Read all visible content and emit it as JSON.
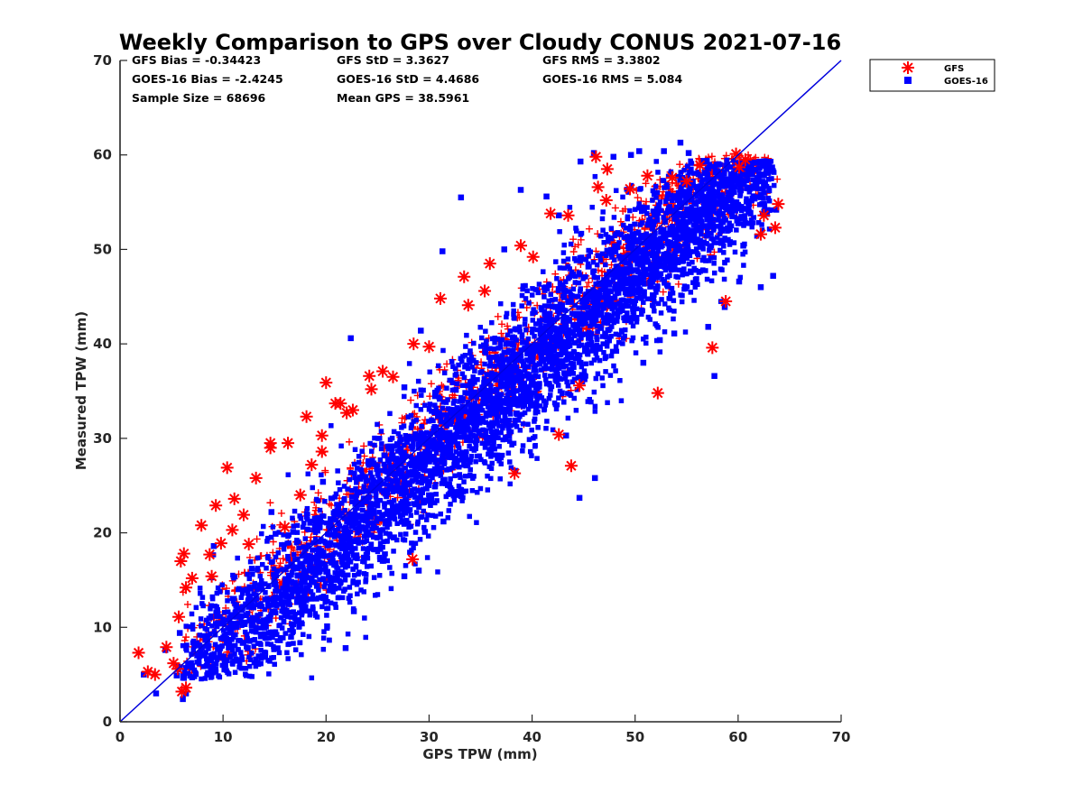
{
  "chart_data": {
    "type": "scatter",
    "title": "Weekly Comparison to GPS over Cloudy CONUS 2021-07-16",
    "xlabel": "GPS TPW (mm)",
    "ylabel": "Measured TPW (mm)",
    "xlim": [
      0,
      70
    ],
    "ylim": [
      0,
      70
    ],
    "xticks": [
      "0",
      "10",
      "20",
      "30",
      "40",
      "50",
      "60",
      "70"
    ],
    "yticks": [
      "0",
      "10",
      "20",
      "30",
      "40",
      "50",
      "60",
      "70"
    ],
    "grid": false,
    "legend_position": "outside-top-right",
    "stats": [
      "GFS Bias = -0.34423",
      "GFS StD = 3.3627",
      "GFS RMS = 3.3802",
      "GOES-16 Bias = -2.4245",
      "GOES-16 StD = 4.4686",
      "GOES-16 RMS = 5.084",
      "Sample Size = 68696",
      "Mean GPS = 38.5961"
    ],
    "one_to_one_line": {
      "from": [
        0,
        0
      ],
      "to": [
        70,
        70
      ],
      "color": "#0000dd"
    },
    "series": [
      {
        "name": "GFS",
        "marker": "asterisk",
        "color": "#ff0000",
        "x": [
          1.8,
          2.7,
          3.4,
          5.2,
          5.6,
          5.9,
          6.2,
          6.4,
          7.0,
          7.9,
          8.7,
          9.3,
          10.4,
          11.1,
          12.0,
          13.2,
          14.6,
          16.3,
          17.5,
          18.1,
          19.6,
          20.0,
          20.9,
          22.0,
          24.2,
          25.5,
          28.5,
          31.1,
          33.4,
          35.9,
          38.9,
          41.8,
          43.5,
          46.2,
          46.4,
          47.3,
          49.5,
          51.2,
          53.6,
          56.3,
          59.8,
          60.7,
          62.2,
          63.6,
          63.9,
          57.5,
          52.2,
          43.8,
          38.3,
          28.4,
          6.0,
          6.4,
          14.6,
          10.9,
          12.5,
          16.0,
          18.6,
          19.6,
          21.4,
          22.6,
          24.4,
          26.5,
          30.0,
          33.8,
          35.4,
          40.1,
          47.2,
          55.0,
          60.1,
          62.5,
          58.8,
          44.6,
          42.6,
          4.5,
          5.7,
          8.9,
          9.8
        ],
        "y": [
          7.3,
          5.3,
          5.0,
          6.2,
          5.6,
          17.0,
          17.8,
          14.2,
          15.2,
          20.8,
          17.7,
          22.9,
          26.9,
          23.6,
          21.9,
          25.8,
          29.5,
          29.5,
          24.0,
          32.3,
          28.6,
          35.9,
          33.7,
          32.7,
          36.6,
          37.1,
          40.0,
          44.8,
          47.1,
          48.5,
          50.4,
          53.8,
          53.6,
          59.8,
          56.6,
          58.5,
          56.4,
          57.8,
          57.6,
          58.9,
          60.1,
          59.5,
          51.6,
          52.3,
          54.8,
          39.6,
          34.8,
          27.1,
          26.3,
          17.2,
          3.2,
          3.6,
          29.0,
          20.3,
          18.8,
          20.6,
          27.2,
          30.3,
          33.7,
          33.0,
          35.2,
          36.5,
          39.7,
          44.1,
          45.6,
          49.2,
          55.2,
          57.2,
          58.7,
          53.6,
          44.5,
          35.6,
          30.4,
          7.9,
          11.1,
          15.4,
          18.9
        ]
      },
      {
        "name": "GOES-16",
        "marker": "square",
        "color": "#0000ff",
        "x": [
          2.3,
          3.5,
          4.4,
          5.5,
          6.1,
          6.4,
          7.0,
          9.1,
          10.9,
          12.8,
          14.7,
          15.1,
          16.8,
          19.7,
          22.4,
          25.7,
          27.6,
          29.2,
          29.6,
          31.3,
          33.1,
          37.3,
          38.9,
          41.4,
          42.6,
          44.7,
          46.0,
          47.9,
          49.6,
          50.4,
          52.8,
          54.4,
          55.2,
          56.9,
          59.0,
          60.1,
          60.5,
          62.2,
          63.4,
          63.7,
          55.9,
          53.8,
          52.4,
          50.8,
          46.1,
          43.3,
          40.2,
          36.8,
          31.4,
          27.6,
          22.7,
          20.1,
          16.6,
          12.4,
          10.1,
          8.2,
          5.8,
          57.7,
          58.7,
          54.8,
          57.1,
          49.8,
          39.7,
          44.6,
          13.2,
          21.9,
          29.0
        ],
        "y": [
          5.0,
          3.0,
          7.6,
          4.9,
          2.4,
          3.0,
          4.7,
          18.6,
          11.3,
          16.2,
          22.2,
          19.9,
          20.1,
          25.4,
          40.6,
          28.2,
          35.4,
          41.4,
          20.1,
          49.8,
          55.5,
          50.0,
          56.3,
          55.6,
          53.6,
          59.3,
          60.2,
          59.8,
          60.0,
          60.4,
          60.4,
          61.3,
          60.2,
          55.4,
          51.0,
          46.6,
          50.4,
          46.0,
          47.2,
          54.2,
          46.8,
          41.1,
          40.4,
          38.0,
          25.8,
          30.3,
          33.5,
          28.1,
          21.2,
          15.4,
          11.7,
          10.1,
          9.0,
          7.8,
          8.8,
          7.1,
          9.4,
          36.6,
          43.9,
          49.2,
          41.8,
          43.7,
          34.4,
          23.7,
          6.6,
          7.8,
          16.0
        ]
      }
    ]
  }
}
